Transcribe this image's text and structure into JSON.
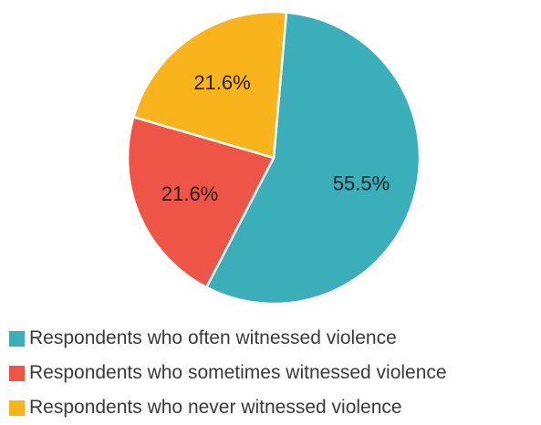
{
  "chart_data": {
    "type": "pie",
    "title": "",
    "slices": [
      {
        "label": "Respondents who often witnessed violence",
        "value": 55.5,
        "display": "55.5%",
        "color": "#3aafb9"
      },
      {
        "label": "Respondents who sometimes witnessed violence",
        "value": 21.6,
        "display": "21.6%",
        "color": "#ef5547"
      },
      {
        "label": "Respondents who never witnessed violence",
        "value": 21.6,
        "display": "21.6%",
        "color": "#f9b41b"
      }
    ],
    "start_angle_deg": 5,
    "direction": "clockwise",
    "legend_position": "bottom-left"
  }
}
